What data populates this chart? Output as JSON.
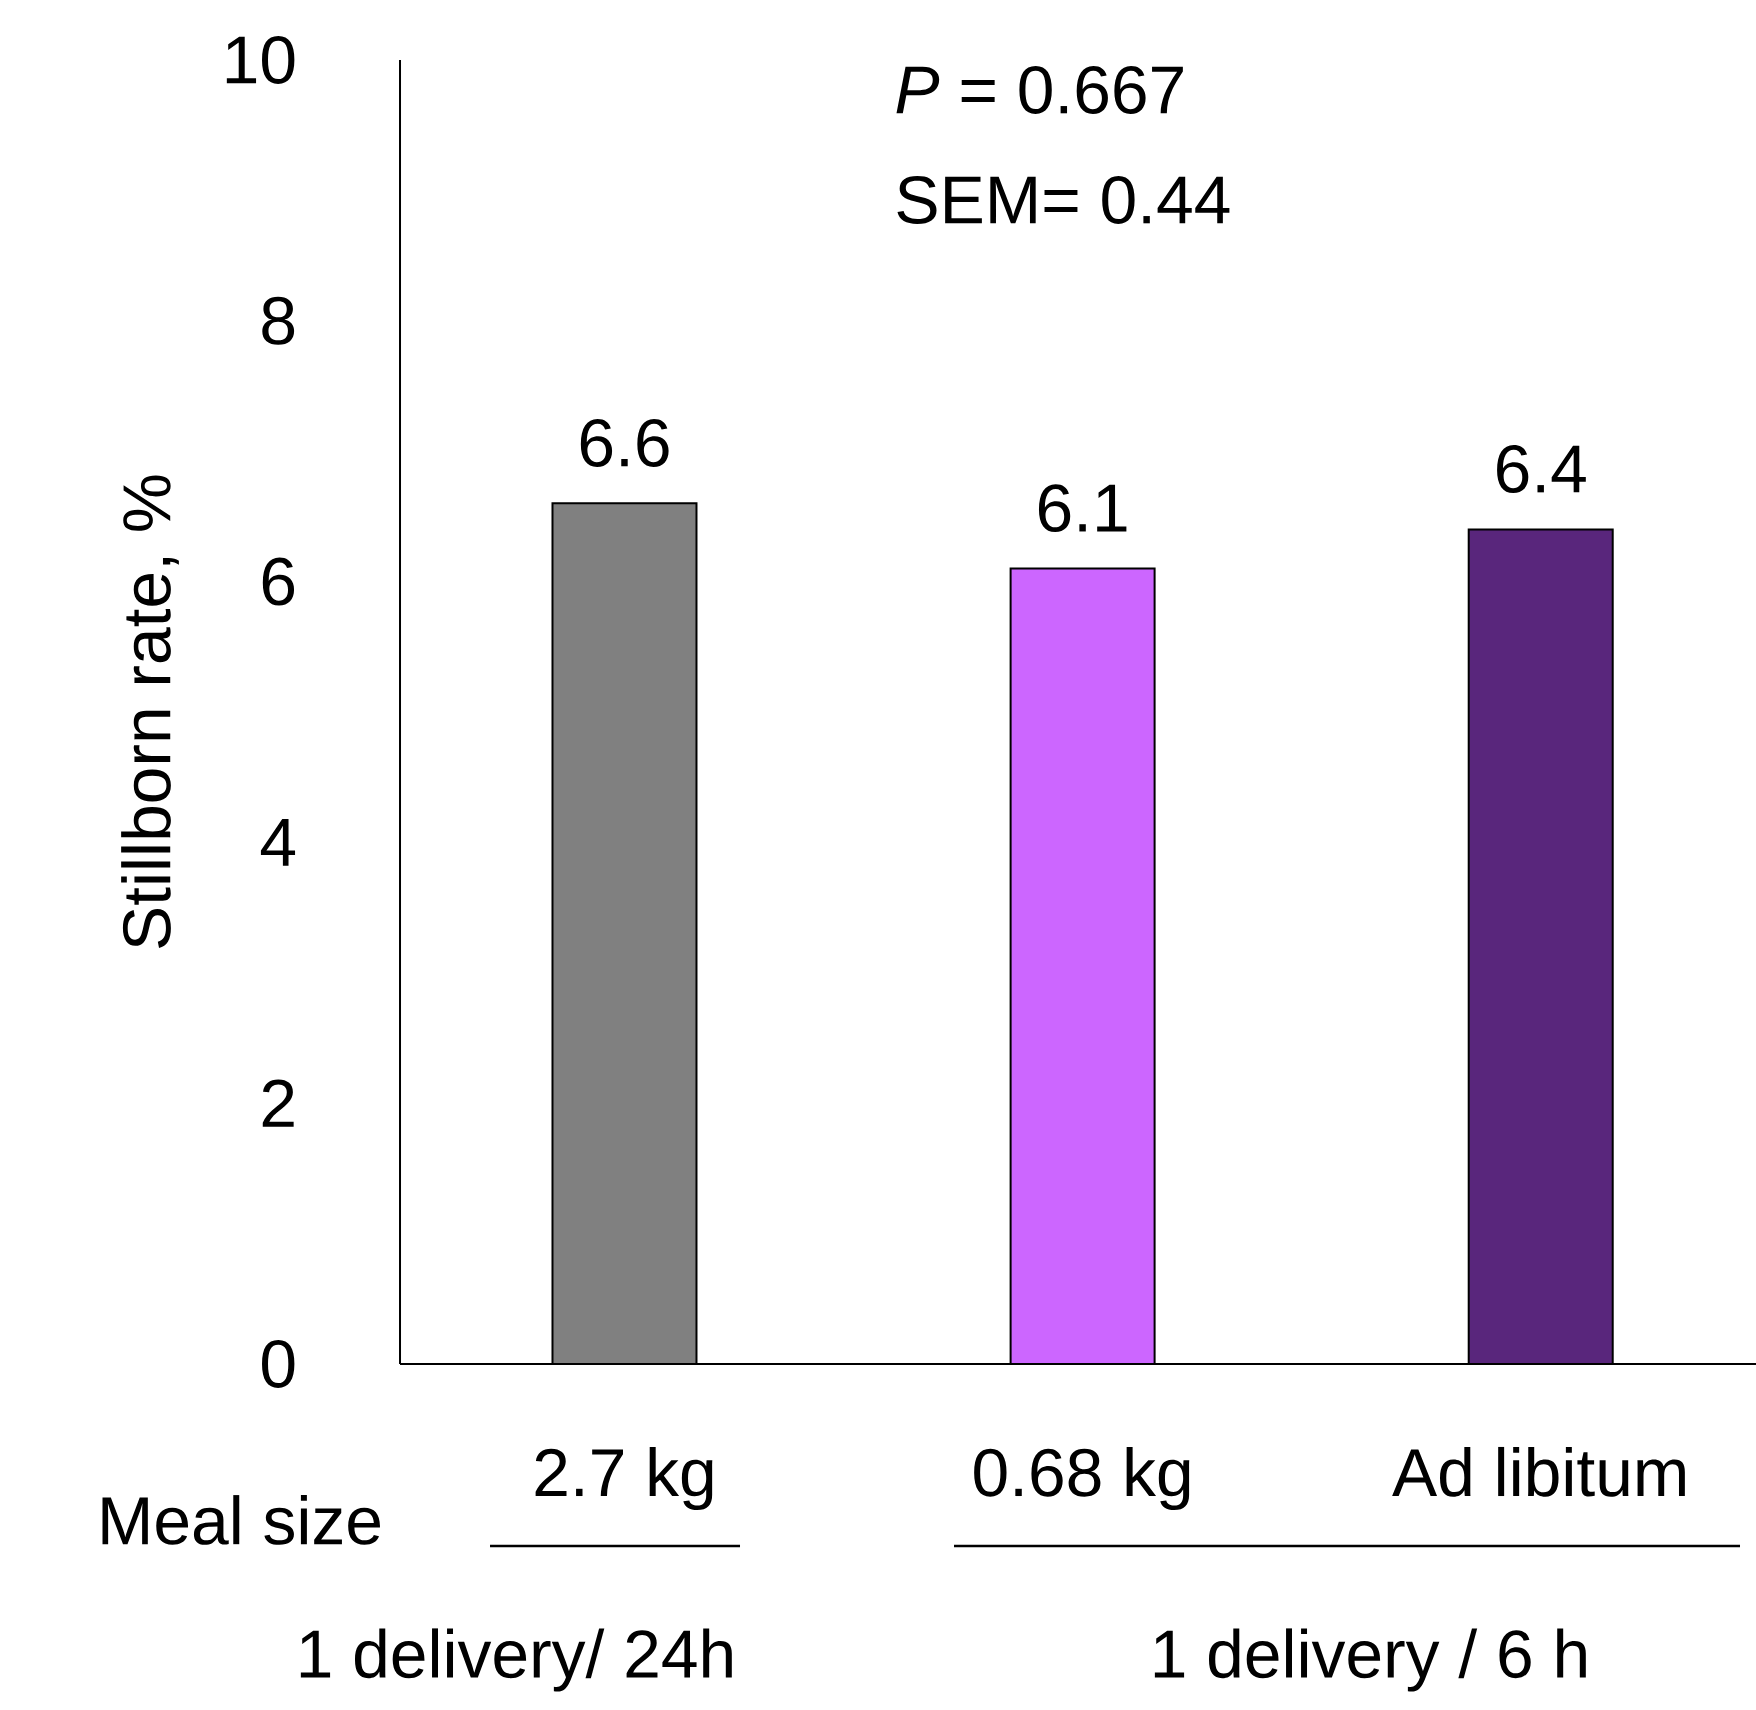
{
  "chart_data": {
    "type": "bar",
    "ylabel": "Stillborn rate, %",
    "categories": [
      "2.7 kg",
      "0.68 kg",
      "Ad libitum"
    ],
    "values": [
      6.6,
      6.1,
      6.4
    ],
    "colors": [
      "#808080",
      "#cc66ff",
      "#59267c"
    ],
    "ylim": [
      0,
      10
    ],
    "yticks": [
      0,
      2,
      4,
      6,
      8,
      10
    ],
    "data_labels": true,
    "grid": false,
    "annotations": [
      "*P* = 0.667",
      "SEM= 0.44",
      "Meal size",
      "1 delivery/ 24h",
      "1 delivery / 6 h"
    ]
  }
}
